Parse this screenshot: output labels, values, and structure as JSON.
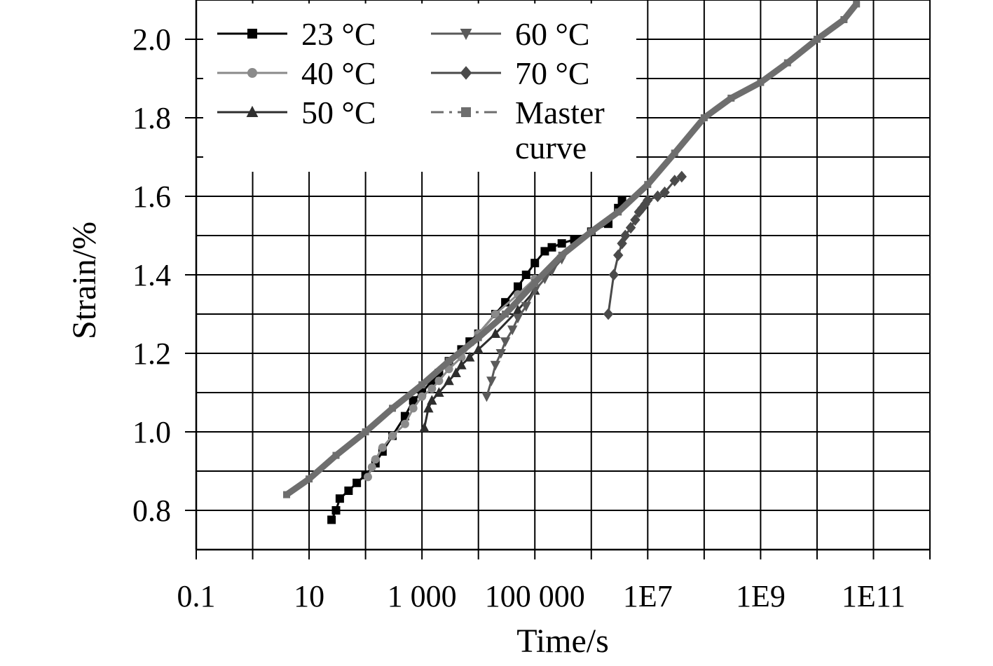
{
  "chart_data": {
    "type": "scatter",
    "title": "",
    "xlabel": "Time/s",
    "ylabel": "Strain/%",
    "x_scale": "log",
    "xlim": [
      0.1,
      1000000000000.0
    ],
    "ylim": [
      0.7,
      2.1
    ],
    "grid": true,
    "legend_position": "top-left",
    "x_ticks": [
      {
        "value": 0.1,
        "label": "0.1"
      },
      {
        "value": 10,
        "label": "10"
      },
      {
        "value": 1000,
        "label": "1 000"
      },
      {
        "value": 100000,
        "label": "100 000"
      },
      {
        "value": 10000000,
        "label": "1E7"
      },
      {
        "value": 1000000000,
        "label": "1E9"
      },
      {
        "value": 100000000000,
        "label": "1E11"
      }
    ],
    "y_ticks": [
      {
        "value": 0.8,
        "label": "0.8"
      },
      {
        "value": 1.0,
        "label": "1.0"
      },
      {
        "value": 1.2,
        "label": "1.2"
      },
      {
        "value": 1.4,
        "label": "1.4"
      },
      {
        "value": 1.6,
        "label": "1.6"
      },
      {
        "value": 1.8,
        "label": "1.8"
      },
      {
        "value": 2.0,
        "label": "2.0"
      }
    ],
    "series": [
      {
        "name": "23 °C",
        "marker": "square",
        "color": "#000000",
        "dash": "none",
        "x": [
          25,
          30,
          35,
          50,
          70,
          100,
          150,
          200,
          300,
          500,
          700,
          1000,
          1500,
          2000,
          3000,
          5000,
          7000,
          10000,
          20000,
          30000,
          50000,
          70000,
          100000,
          150000,
          200000,
          300000,
          500000,
          1000000,
          2000000,
          3000000,
          3500000
        ],
        "y": [
          0.776,
          0.8,
          0.83,
          0.85,
          0.87,
          0.89,
          0.92,
          0.95,
          0.99,
          1.04,
          1.08,
          1.1,
          1.13,
          1.15,
          1.18,
          1.21,
          1.23,
          1.25,
          1.3,
          1.33,
          1.37,
          1.4,
          1.43,
          1.46,
          1.47,
          1.48,
          1.49,
          1.51,
          1.53,
          1.57,
          1.59
        ]
      },
      {
        "name": "40 °C",
        "marker": "circle",
        "color": "#8a8a8a",
        "dash": "none",
        "x": [
          110,
          130,
          150,
          200,
          300,
          500,
          700,
          1000,
          1500,
          2000,
          3000,
          5000,
          10000,
          20000,
          50000,
          100000
        ],
        "y": [
          0.885,
          0.91,
          0.93,
          0.96,
          0.99,
          1.02,
          1.06,
          1.09,
          1.11,
          1.13,
          1.16,
          1.19,
          1.25,
          1.3,
          1.35,
          1.39
        ]
      },
      {
        "name": "50 °C",
        "marker": "triangle-up",
        "color": "#2e2e2e",
        "dash": "none",
        "x": [
          1100,
          1300,
          1500,
          2000,
          3000,
          4000,
          5000,
          7000,
          10000,
          20000,
          50000,
          100000
        ],
        "y": [
          1.01,
          1.06,
          1.08,
          1.1,
          1.13,
          1.15,
          1.17,
          1.19,
          1.21,
          1.25,
          1.31,
          1.36
        ]
      },
      {
        "name": "60 °C",
        "marker": "triangle-down",
        "color": "#5a5a5a",
        "dash": "none",
        "x": [
          14000,
          17000,
          20000,
          25000,
          30000,
          40000,
          50000,
          70000,
          100000,
          150000,
          200000,
          300000
        ],
        "y": [
          1.09,
          1.13,
          1.17,
          1.2,
          1.23,
          1.26,
          1.29,
          1.32,
          1.36,
          1.39,
          1.41,
          1.44
        ]
      },
      {
        "name": "70 °C",
        "marker": "diamond",
        "color": "#4a4a4a",
        "dash": "none",
        "x": [
          2000000,
          2500000,
          3000000,
          3500000,
          4000000,
          5000000,
          6000000,
          7000000,
          8000000,
          9000000,
          10000000,
          15000000,
          20000000,
          30000000,
          40000000
        ],
        "y": [
          1.3,
          1.4,
          1.45,
          1.48,
          1.5,
          1.52,
          1.54,
          1.56,
          1.57,
          1.58,
          1.59,
          1.6,
          1.61,
          1.64,
          1.65
        ]
      },
      {
        "name": "Master curve",
        "marker": "square",
        "color": "#6e6e6e",
        "dash": "dashdot",
        "x": [
          4,
          10,
          30,
          100,
          300,
          1000,
          3000,
          10000,
          30000,
          100000,
          300000,
          1000000,
          3000000,
          10000000,
          30000000,
          100000000,
          300000000,
          1000000000,
          3000000000,
          10000000000,
          30000000000,
          50000000000
        ],
        "y": [
          0.84,
          0.88,
          0.94,
          1.0,
          1.06,
          1.12,
          1.18,
          1.24,
          1.3,
          1.38,
          1.45,
          1.51,
          1.56,
          1.63,
          1.71,
          1.8,
          1.85,
          1.89,
          1.94,
          2.0,
          2.05,
          2.09
        ]
      }
    ]
  }
}
